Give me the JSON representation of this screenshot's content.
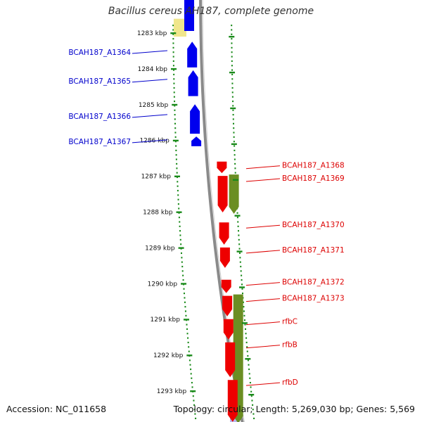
{
  "title": "Bacillus cereus AH187, complete genome",
  "accession": "Accession: NC_011658",
  "topology": "Topology: circular; Length: 5,269,030 bp; Genes: 5,569",
  "colors": {
    "blue": "#0000ee",
    "red": "#ee0000",
    "olive": "#6b8e23",
    "yellow": "#f0e68c",
    "tick_green": "#1a8a1a",
    "backbone": "#8a8a8a",
    "lavender": "#b8b8f0",
    "blue_text": "#0000cc",
    "red_text": "#dd0000"
  },
  "ticks": [
    {
      "label": "1283 kbp",
      "kbp": 1283
    },
    {
      "label": "1284 kbp",
      "kbp": 1284
    },
    {
      "label": "1285 kbp",
      "kbp": 1285
    },
    {
      "label": "1286 kbp",
      "kbp": 1286
    },
    {
      "label": "1287 kbp",
      "kbp": 1287
    },
    {
      "label": "1288 kbp",
      "kbp": 1288
    },
    {
      "label": "1289 kbp",
      "kbp": 1289
    },
    {
      "label": "1290 kbp",
      "kbp": 1290
    },
    {
      "label": "1291 kbp",
      "kbp": 1291
    },
    {
      "label": "1292 kbp",
      "kbp": 1292
    },
    {
      "label": "1293 kbp",
      "kbp": 1293
    }
  ],
  "genes_left": [
    {
      "label": "BCAH187_A1364",
      "strand": "reverse",
      "start_kbp": 1283.2,
      "end_kbp": 1284.0
    },
    {
      "label": "BCAH187_A1365",
      "strand": "reverse",
      "start_kbp": 1284.0,
      "end_kbp": 1284.8
    },
    {
      "label": "BCAH187_A1366",
      "strand": "reverse",
      "start_kbp": 1284.95,
      "end_kbp": 1285.85
    },
    {
      "label": "BCAH187_A1367",
      "strand": "reverse",
      "start_kbp": 1285.85,
      "end_kbp": 1286.2
    }
  ],
  "genes_right": [
    {
      "label": "BCAH187_A1368",
      "strand": "forward",
      "start_kbp": 1286.55,
      "end_kbp": 1286.95
    },
    {
      "label": "BCAH187_A1369",
      "strand": "forward",
      "start_kbp": 1286.95,
      "end_kbp": 1288.05
    },
    {
      "label": "BCAH187_A1370",
      "strand": "forward",
      "start_kbp": 1288.25,
      "end_kbp": 1288.95
    },
    {
      "label": "BCAH187_A1371",
      "strand": "forward",
      "start_kbp": 1288.95,
      "end_kbp": 1289.6
    },
    {
      "label": "BCAH187_A1372",
      "strand": "forward",
      "start_kbp": 1289.85,
      "end_kbp": 1290.3
    },
    {
      "label": "BCAH187_A1373",
      "strand": "forward",
      "start_kbp": 1290.3,
      "end_kbp": 1290.95
    },
    {
      "label": "rfbC",
      "strand": "forward",
      "start_kbp": 1290.95,
      "end_kbp": 1291.6
    },
    {
      "label": "rfbB",
      "strand": "forward",
      "start_kbp": 1291.6,
      "end_kbp": 1292.65
    },
    {
      "label": "rfbD",
      "strand": "forward",
      "start_kbp": 1292.65,
      "end_kbp": 1293.9
    }
  ],
  "olive_features": [
    {
      "start_kbp": 1286.95,
      "end_kbp": 1288.05
    },
    {
      "start_kbp": 1290.3,
      "end_kbp": 1293.9
    }
  ],
  "yellow_features": [
    {
      "start_kbp": 1282.6,
      "end_kbp": 1283.1
    }
  ]
}
